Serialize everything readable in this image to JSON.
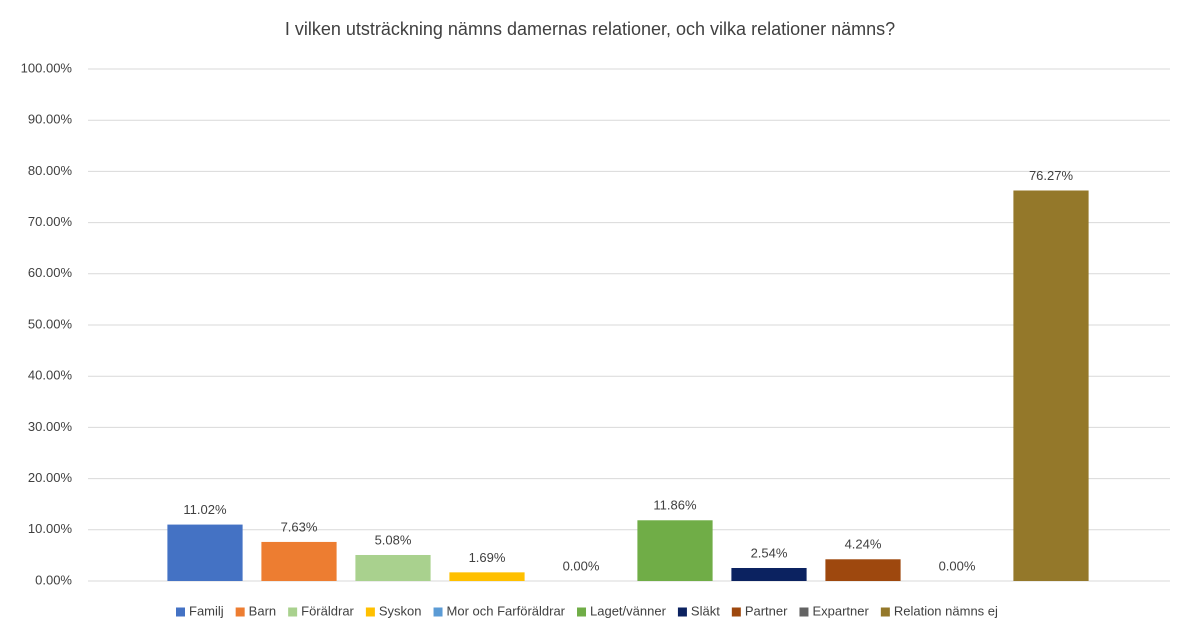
{
  "chart_data": {
    "type": "bar",
    "title": "I vilken utsträckning nämns damernas relationer, och vilka relationer nämns?",
    "series": [
      {
        "name": "Familj",
        "color": "#4472c4",
        "values": [
          11.02
        ],
        "value_labels": [
          "11.02%"
        ]
      },
      {
        "name": "Barn",
        "color": "#ed7d31",
        "values": [
          7.63
        ],
        "value_labels": [
          "7.63%"
        ]
      },
      {
        "name": "Föräldrar",
        "color": "#a9d18e",
        "values": [
          5.08
        ],
        "value_labels": [
          "5.08%"
        ]
      },
      {
        "name": "Syskon",
        "color": "#ffc000",
        "values": [
          1.69
        ],
        "value_labels": [
          "1.69%"
        ]
      },
      {
        "name": "Mor och Farföräldrar",
        "color": "#5b9bd5",
        "values": [
          0
        ],
        "value_labels": [
          "0.00%"
        ]
      },
      {
        "name": "Laget/vänner",
        "color": "#70ad47",
        "values": [
          11.86
        ],
        "value_labels": [
          "11.86%"
        ]
      },
      {
        "name": "Släkt",
        "color": "#0b2260",
        "values": [
          2.54
        ],
        "value_labels": [
          "2.54%"
        ]
      },
      {
        "name": "Partner",
        "color": "#9e480e",
        "values": [
          4.24
        ],
        "value_labels": [
          "4.24%"
        ]
      },
      {
        "name": "Expartner",
        "color": "#636363",
        "values": [
          0
        ],
        "value_labels": [
          "0.00%"
        ]
      },
      {
        "name": "Relation nämns ej",
        "color": "#94782a",
        "values": [
          76.27
        ],
        "value_labels": [
          "76.27%"
        ]
      }
    ],
    "ylim": [
      0,
      100
    ],
    "yticks": [
      {
        "value": 0,
        "label": "0.00%"
      },
      {
        "value": 10,
        "label": "10.00%"
      },
      {
        "value": 20,
        "label": "20.00%"
      },
      {
        "value": 30,
        "label": "30.00%"
      },
      {
        "value": 40,
        "label": "40.00%"
      },
      {
        "value": 50,
        "label": "50.00%"
      },
      {
        "value": 60,
        "label": "60.00%"
      },
      {
        "value": 70,
        "label": "70.00%"
      },
      {
        "value": 80,
        "label": "80.00%"
      },
      {
        "value": 90,
        "label": "90.00%"
      },
      {
        "value": 100,
        "label": "100.00%"
      }
    ],
    "grid": true
  }
}
